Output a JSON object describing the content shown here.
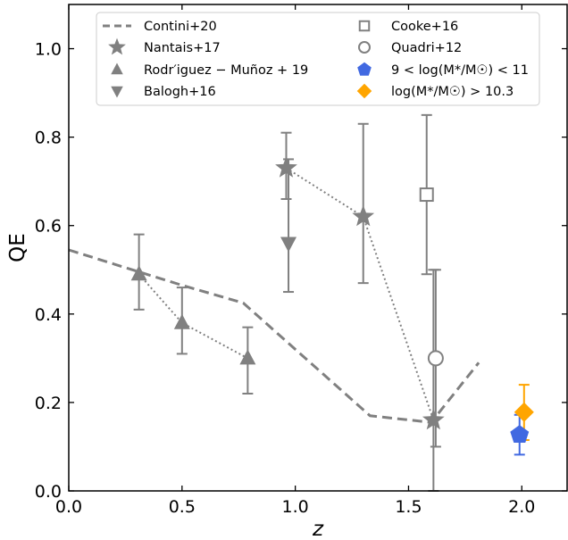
{
  "chart_data": {
    "type": "scatter",
    "xlabel": "z",
    "ylabel": "QE",
    "xlim": [
      0.0,
      2.2
    ],
    "ylim": [
      0.0,
      1.1
    ],
    "x_ticks": [
      "0.0",
      "0.5",
      "1.0",
      "1.5",
      "2.0"
    ],
    "y_ticks": [
      "0.0",
      "0.2",
      "0.4",
      "0.6",
      "0.8",
      "1.0"
    ],
    "legend_position": "top",
    "colors": {
      "gray": "#808080",
      "blue": "#4169e1",
      "orange": "#ffa500"
    },
    "series": [
      {
        "name": "Contini+20",
        "marker": "dashed-line",
        "color": "#808080",
        "points": [
          {
            "x": 0.0,
            "y": 0.545
          },
          {
            "x": 0.3,
            "y": 0.497
          },
          {
            "x": 0.5,
            "y": 0.465
          },
          {
            "x": 0.77,
            "y": 0.425
          },
          {
            "x": 1.33,
            "y": 0.17
          },
          {
            "x": 1.6,
            "y": 0.155
          },
          {
            "x": 1.81,
            "y": 0.29
          }
        ]
      },
      {
        "name": "Nantais+17",
        "marker": "star",
        "color": "#808080",
        "connected": true,
        "points": [
          {
            "x": 0.96,
            "y": 0.73,
            "err_lo": 0.07,
            "err_hi": 0.08
          },
          {
            "x": 1.3,
            "y": 0.62,
            "err_lo": 0.15,
            "err_hi": 0.21
          },
          {
            "x": 1.61,
            "y": 0.16,
            "err_lo": 0.16,
            "err_hi": 0.34
          }
        ]
      },
      {
        "name": "Rodr'iguez−Muñoz+19",
        "legend_label": "Rodr′iguez − Muñoz + 19",
        "marker": "triangle-up",
        "color": "#808080",
        "connected": true,
        "points": [
          {
            "x": 0.31,
            "y": 0.49,
            "err_lo": 0.08,
            "err_hi": 0.09
          },
          {
            "x": 0.5,
            "y": 0.38,
            "err_lo": 0.07,
            "err_hi": 0.08
          },
          {
            "x": 0.79,
            "y": 0.3,
            "err_lo": 0.08,
            "err_hi": 0.07
          }
        ]
      },
      {
        "name": "Balogh+16",
        "marker": "triangle-down",
        "color": "#808080",
        "connected": false,
        "points": [
          {
            "x": 0.97,
            "y": 0.56,
            "err_lo": 0.11,
            "err_hi": 0.19
          }
        ]
      },
      {
        "name": "Cooke+16",
        "marker": "square-open",
        "color": "#808080",
        "connected": false,
        "points": [
          {
            "x": 1.58,
            "y": 0.67,
            "err_lo": 0.18,
            "err_hi": 0.18
          }
        ]
      },
      {
        "name": "Quadri+12",
        "marker": "circle-open",
        "color": "#808080",
        "connected": false,
        "points": [
          {
            "x": 1.62,
            "y": 0.3,
            "err_lo": 0.2,
            "err_hi": 0.2
          }
        ]
      },
      {
        "name": "9 < log(M*/M☉) < 11",
        "marker": "pentagon",
        "color": "#4169e1",
        "connected": false,
        "points": [
          {
            "x": 1.99,
            "y": 0.127,
            "err_lo": 0.045,
            "err_hi": 0.045
          }
        ]
      },
      {
        "name": "log(M*/M☉) > 10.3",
        "marker": "diamond",
        "color": "#ffa500",
        "connected": false,
        "points": [
          {
            "x": 2.01,
            "y": 0.178,
            "err_lo": 0.063,
            "err_hi": 0.062
          }
        ]
      }
    ]
  }
}
